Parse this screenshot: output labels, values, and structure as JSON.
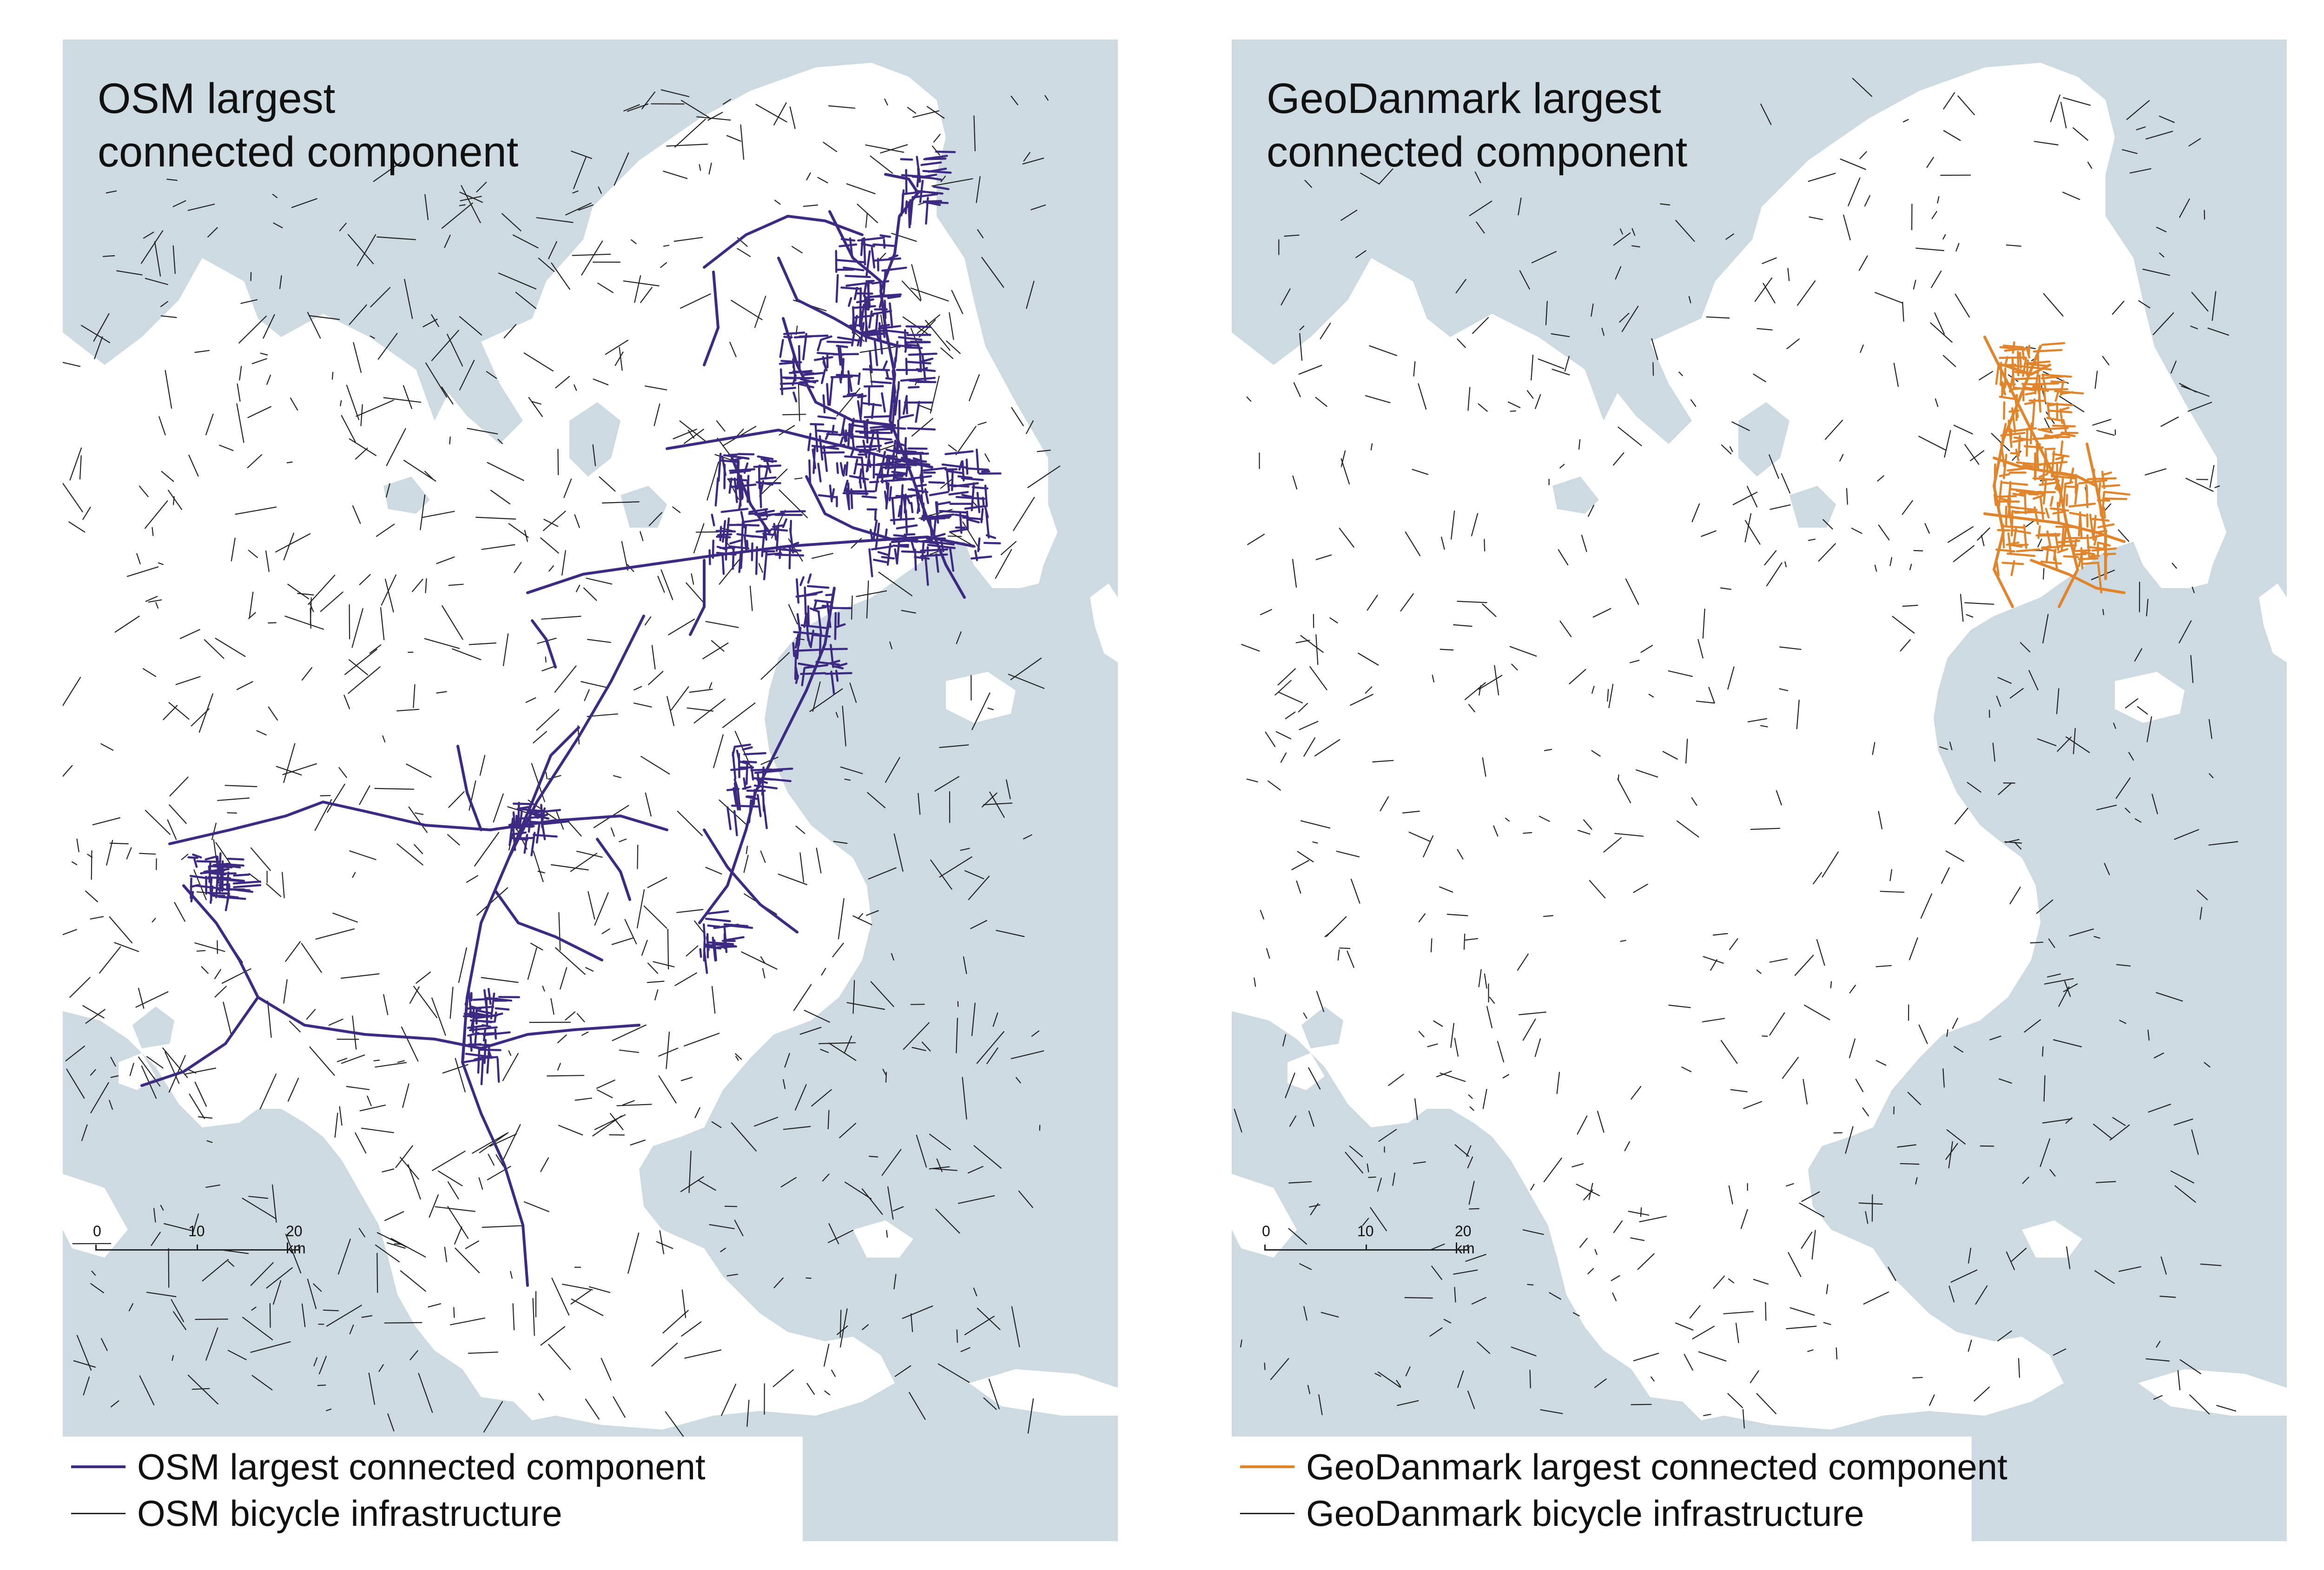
{
  "colors": {
    "sea": "#cddae2",
    "land": "#ffffff",
    "osm_component": "#3d2a82",
    "geodanmark_component": "#e0852c",
    "infrastructure": "#222222"
  },
  "panels": [
    {
      "id": "osm",
      "title": "OSM largest\nconnected component",
      "legend": [
        {
          "label": "OSM largest connected component",
          "color": "#3d2a82",
          "kind": "component"
        },
        {
          "label": "OSM bicycle infrastructure",
          "color": "#222222",
          "kind": "infrastructure"
        }
      ],
      "scalebar": {
        "ticks": [
          "0",
          "10",
          "20 km"
        ]
      }
    },
    {
      "id": "geodanmark",
      "title": "GeoDanmark largest\nconnected component",
      "legend": [
        {
          "label": "GeoDanmark largest connected component",
          "color": "#e0852c",
          "kind": "component"
        },
        {
          "label": "GeoDanmark bicycle infrastructure",
          "color": "#222222",
          "kind": "infrastructure"
        }
      ],
      "scalebar": {
        "ticks": [
          "0",
          "10",
          "20 km"
        ]
      }
    }
  ]
}
